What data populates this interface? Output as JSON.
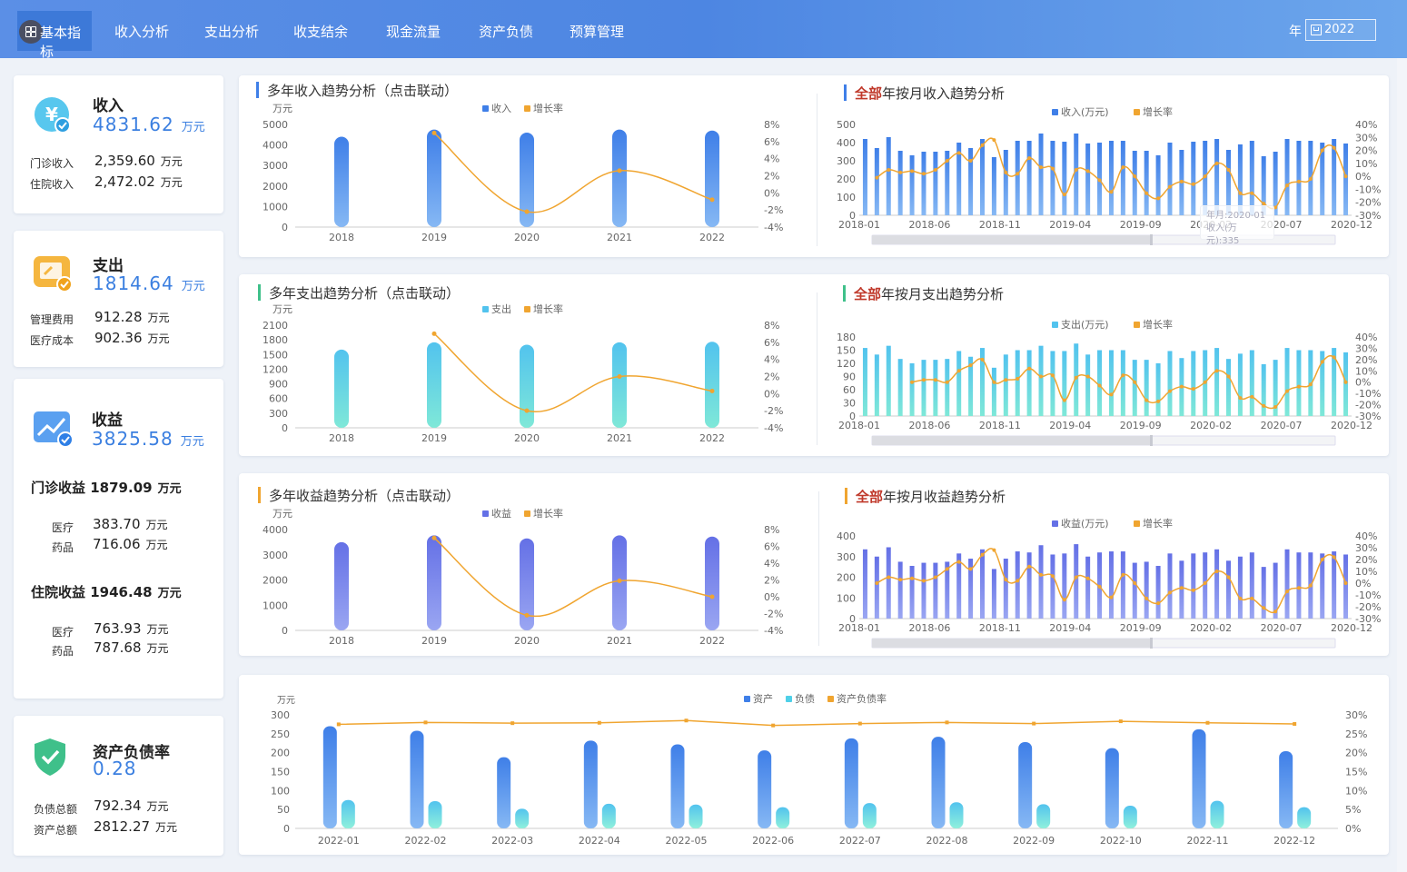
{
  "nav": {
    "active": "基本指标",
    "tabs": [
      "收入分析",
      "支出分析",
      "收支结余",
      "现金流量",
      "资产负债",
      "预算管理"
    ],
    "year_label": "年",
    "year_value": "2022"
  },
  "kpis": {
    "income": {
      "title": "收入",
      "value": "4831.62",
      "unit": "万元",
      "items": [
        {
          "label": "门诊收入",
          "value": "2,359.60",
          "unit": "万元"
        },
        {
          "label": "住院收入",
          "value": "2,472.02",
          "unit": "万元"
        }
      ]
    },
    "expense": {
      "title": "支出",
      "value": "1814.64",
      "unit": "万元",
      "items": [
        {
          "label": "管理费用",
          "value": "912.28",
          "unit": "万元"
        },
        {
          "label": "医疗成本",
          "value": "902.36",
          "unit": "万元"
        }
      ]
    },
    "profit": {
      "title": "收益",
      "value": "3825.58",
      "unit": "万元",
      "outpatient": {
        "label": "门诊收益",
        "value": "1879.09",
        "unit": "万元",
        "items": [
          {
            "label": "医疗",
            "value": "383.70",
            "unit": "万元"
          },
          {
            "label": "药品",
            "value": "716.06",
            "unit": "万元"
          }
        ]
      },
      "inpatient": {
        "label": "住院收益",
        "value": "1946.48",
        "unit": "万元",
        "items": [
          {
            "label": "医疗",
            "value": "763.93",
            "unit": "万元"
          },
          {
            "label": "药品",
            "value": "787.68",
            "unit": "万元"
          }
        ]
      }
    },
    "debt_ratio": {
      "title": "资产负债率",
      "value": "0.28",
      "items": [
        {
          "label": "负债总额",
          "value": "792.34",
          "unit": "万元"
        },
        {
          "label": "资产总额",
          "value": "2812.27",
          "unit": "万元"
        }
      ]
    }
  },
  "sections": {
    "income_yearly_title": "多年收入趋势分析（点击联动）",
    "income_monthly_title_a": "全部",
    "income_monthly_title_b": "年按月收入趋势分析",
    "expense_yearly_title": "多年支出趋势分析（点击联动）",
    "expense_monthly_title_a": "全部",
    "expense_monthly_title_b": "年按月支出趋势分析",
    "profit_yearly_title": "多年收益趋势分析（点击联动）",
    "profit_monthly_title_a": "全部",
    "profit_monthly_title_b": "年按月收益趋势分析"
  },
  "tooltip": {
    "line1": "年月:2020-01",
    "line2": "收入(万元):335"
  },
  "colors": {
    "blue": "#3f7fe8",
    "cyan": "#4fd0e8",
    "purple": "#6b78e6",
    "orange": "#f0a530",
    "brand": "#4d86e2",
    "red": "#c0392b"
  },
  "chart_data": [
    {
      "id": "income_yearly",
      "type": "bar",
      "unit_label": "万元",
      "categories": [
        "2018",
        "2019",
        "2020",
        "2021",
        "2022"
      ],
      "series": [
        {
          "name": "收入",
          "values": [
            4400,
            4750,
            4600,
            4750,
            4700
          ]
        },
        {
          "name": "增长率",
          "type": "line",
          "axis": "right",
          "values": [
            null,
            7,
            -2.2,
            2.6,
            -0.8
          ]
        }
      ],
      "ylim": [
        0,
        5000
      ],
      "yticks": [
        "0",
        "1000",
        "2000",
        "3000",
        "4000",
        "5000"
      ],
      "y2ticks": [
        "-4%",
        "-2%",
        "0%",
        "2%",
        "4%",
        "6%",
        "8%"
      ],
      "y2lim": [
        -4,
        8
      ]
    },
    {
      "id": "income_monthly",
      "type": "bar",
      "categories_shown": [
        "2018-01",
        "2018-06",
        "2018-11",
        "2019-04",
        "2019-09",
        "2020-02",
        "2020-07",
        "2020-12"
      ],
      "series": [
        {
          "name": "收入(万元)",
          "values": [
            420,
            370,
            430,
            355,
            330,
            350,
            350,
            355,
            400,
            370,
            420,
            320,
            360,
            410,
            410,
            450,
            410,
            405,
            450,
            395,
            400,
            410,
            410,
            355,
            355,
            330,
            400,
            360,
            405,
            410,
            420,
            360,
            390,
            410,
            325,
            350,
            420,
            410,
            410,
            400,
            420,
            395
          ]
        },
        {
          "name": "增长率",
          "type": "line",
          "axis": "right",
          "values": [
            null,
            null,
            null,
            null,
            null,
            null,
            null,
            null,
            null,
            null,
            null,
            null,
            null,
            -1,
            5,
            3,
            4,
            2,
            5,
            12,
            18,
            12,
            24,
            28,
            3,
            2,
            14,
            7,
            6,
            -14,
            5,
            4,
            -3,
            -12,
            7,
            0,
            -13,
            -17,
            -8,
            -4,
            -6,
            0,
            10,
            5,
            -13,
            -13,
            -21,
            -24,
            -7,
            -4,
            -2,
            20,
            22,
            0
          ]
        },
        {
          "name": "增长率",
          "type": "line",
          "axis": "right",
          "values": [
            -1,
            5,
            3,
            4,
            2,
            5,
            12,
            18,
            12,
            24,
            28,
            3,
            2,
            14,
            7,
            6,
            -14,
            5,
            4,
            -3,
            -12,
            7,
            0,
            -13,
            -17,
            -8,
            -4,
            -6,
            0,
            10,
            5,
            -13,
            -13,
            -21,
            -24,
            -7,
            -4,
            -2,
            20,
            22,
            0
          ]
        }
      ],
      "ylim": [
        0,
        500
      ],
      "yticks": [
        "0",
        "100",
        "200",
        "300",
        "400",
        "500"
      ],
      "y2ticks": [
        "-30%",
        "-20%",
        "-10%",
        "0%",
        "10%",
        "20%",
        "30%",
        "40%"
      ],
      "y2lim": [
        -30,
        40
      ]
    },
    {
      "id": "expense_yearly",
      "type": "bar",
      "unit_label": "万元",
      "categories": [
        "2018",
        "2019",
        "2020",
        "2021",
        "2022"
      ],
      "series": [
        {
          "name": "支出",
          "values": [
            1600,
            1750,
            1700,
            1750,
            1760
          ]
        },
        {
          "name": "增长率",
          "type": "line",
          "axis": "right",
          "values": [
            null,
            7,
            -2,
            2,
            0.3
          ]
        }
      ],
      "ylim": [
        0,
        2100
      ],
      "yticks": [
        "0",
        "300",
        "600",
        "900",
        "1200",
        "1500",
        "1800",
        "2100"
      ],
      "y2ticks": [
        "-4%",
        "-2%",
        "0%",
        "2%",
        "4%",
        "6%",
        "8%"
      ],
      "y2lim": [
        -4,
        8
      ]
    },
    {
      "id": "expense_monthly",
      "type": "bar",
      "categories_shown": [
        "2018-01",
        "2018-06",
        "2018-11",
        "2019-04",
        "2019-09",
        "2020-02",
        "2020-07",
        "2020-12"
      ],
      "series": [
        {
          "name": "支出(万元)",
          "values": [
            155,
            140,
            160,
            130,
            120,
            128,
            128,
            130,
            148,
            135,
            155,
            110,
            140,
            150,
            150,
            160,
            148,
            148,
            165,
            140,
            150,
            150,
            150,
            128,
            128,
            120,
            148,
            132,
            148,
            150,
            155,
            130,
            142,
            150,
            118,
            128,
            155,
            150,
            150,
            148,
            155,
            145
          ]
        },
        {
          "name": "增长率",
          "type": "line",
          "axis": "right",
          "values": [
            0,
            2,
            2,
            0,
            10,
            15,
            20,
            0,
            2,
            3,
            12,
            5,
            6,
            -16,
            4,
            5,
            -3,
            -11,
            6,
            0,
            -16,
            -17,
            -8,
            -4,
            -6,
            0,
            10,
            5,
            -14,
            -13,
            -21,
            -22,
            -8,
            -4,
            -2,
            18,
            22,
            0
          ]
        }
      ],
      "ylim": [
        0,
        180
      ],
      "yticks": [
        "0",
        "30",
        "60",
        "90",
        "120",
        "150",
        "180"
      ],
      "y2ticks": [
        "-30%",
        "-20%",
        "-10%",
        "0%",
        "10%",
        "20%",
        "30%",
        "40%"
      ],
      "y2lim": [
        -30,
        40
      ]
    },
    {
      "id": "profit_yearly",
      "type": "bar",
      "unit_label": "万元",
      "categories": [
        "2018",
        "2019",
        "2020",
        "2021",
        "2022"
      ],
      "series": [
        {
          "name": "收益",
          "values": [
            3500,
            3770,
            3650,
            3770,
            3720
          ]
        },
        {
          "name": "增长率",
          "type": "line",
          "axis": "right",
          "values": [
            null,
            7,
            -2.2,
            1.9,
            0
          ]
        }
      ],
      "ylim": [
        0,
        4000
      ],
      "yticks": [
        "0",
        "1000",
        "2000",
        "3000",
        "4000"
      ],
      "y2ticks": [
        "-4%",
        "-2%",
        "0%",
        "2%",
        "4%",
        "6%",
        "8%"
      ],
      "y2lim": [
        -4,
        8
      ]
    },
    {
      "id": "profit_monthly",
      "type": "bar",
      "categories_shown": [
        "2018-01",
        "2018-06",
        "2018-11",
        "2019-04",
        "2019-09",
        "2020-02",
        "2020-07",
        "2020-12"
      ],
      "series": [
        {
          "name": "收益(万元)",
          "values": [
            335,
            300,
            345,
            275,
            255,
            270,
            270,
            275,
            315,
            290,
            335,
            240,
            290,
            325,
            320,
            355,
            310,
            315,
            360,
            300,
            320,
            325,
            325,
            270,
            275,
            255,
            315,
            280,
            315,
            320,
            335,
            280,
            300,
            320,
            250,
            270,
            335,
            320,
            320,
            315,
            325,
            310
          ]
        },
        {
          "name": "增长率",
          "type": "line",
          "axis": "right",
          "values": [
            0,
            5,
            3,
            4,
            2,
            5,
            12,
            18,
            12,
            24,
            28,
            3,
            2,
            14,
            7,
            6,
            -14,
            5,
            4,
            -3,
            -12,
            7,
            0,
            -13,
            -17,
            -8,
            -4,
            -6,
            0,
            10,
            5,
            -13,
            -13,
            -21,
            -24,
            -7,
            -4,
            -2,
            20,
            22,
            0
          ]
        }
      ],
      "ylim": [
        0,
        400
      ],
      "yticks": [
        "0",
        "100",
        "200",
        "300",
        "400"
      ],
      "y2ticks": [
        "-30%",
        "-20%",
        "-10%",
        "0%",
        "10%",
        "20%",
        "30%",
        "40%"
      ],
      "y2lim": [
        -30,
        40
      ]
    },
    {
      "id": "balance_monthly",
      "type": "bar",
      "unit_label": "万元",
      "categories": [
        "2022-01",
        "2022-02",
        "2022-03",
        "2022-04",
        "2022-05",
        "2022-06",
        "2022-07",
        "2022-08",
        "2022-09",
        "2022-10",
        "2022-11",
        "2022-12"
      ],
      "series": [
        {
          "name": "资产",
          "values": [
            270,
            258,
            188,
            232,
            222,
            206,
            238,
            242,
            228,
            212,
            262,
            204
          ]
        },
        {
          "name": "负债",
          "values": [
            75,
            72,
            52,
            65,
            63,
            56,
            67,
            69,
            64,
            60,
            73,
            56
          ]
        },
        {
          "name": "资产负债率",
          "type": "line",
          "axis": "right",
          "values": [
            27.5,
            28,
            27.8,
            27.9,
            28.5,
            27.2,
            27.7,
            28,
            27.7,
            28.3,
            27.9,
            27.6
          ]
        }
      ],
      "ylim": [
        0,
        300
      ],
      "yticks": [
        "0",
        "50",
        "100",
        "150",
        "200",
        "250",
        "300"
      ],
      "y2ticks": [
        "0%",
        "5%",
        "10%",
        "15%",
        "20%",
        "25%",
        "30%"
      ],
      "y2lim": [
        0,
        30
      ]
    }
  ]
}
